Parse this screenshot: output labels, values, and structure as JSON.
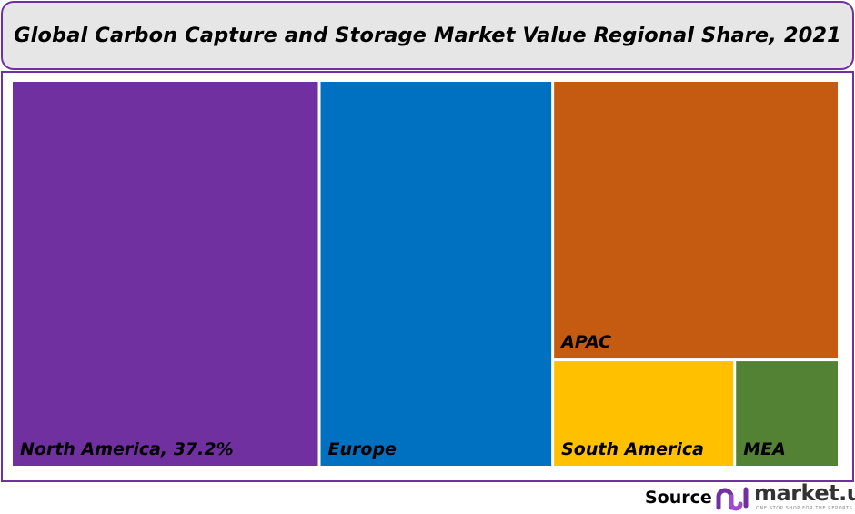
{
  "chart_data": {
    "type": "treemap",
    "title": "Global Carbon Capture and Storage Market Value Regional Share, 2021",
    "unit": "%",
    "items": [
      {
        "name": "North America",
        "value": 37.2,
        "label": "North America, 37.2%",
        "color": "#7030a0"
      },
      {
        "name": "Europe",
        "value": 28.2,
        "label": "Europe",
        "color": "#0070c0"
      },
      {
        "name": "APAC",
        "value": 25.0,
        "label": "APAC",
        "color": "#c55a11"
      },
      {
        "name": "South America",
        "value": 6.1,
        "label": "South America",
        "color": "#ffc000"
      },
      {
        "name": "MEA",
        "value": 3.5,
        "label": "MEA",
        "color": "#548235"
      }
    ]
  },
  "footer": {
    "source_label": "Source",
    "brand": "market.us",
    "tagline": "ONE STOP SHOP FOR THE REPORTS"
  }
}
